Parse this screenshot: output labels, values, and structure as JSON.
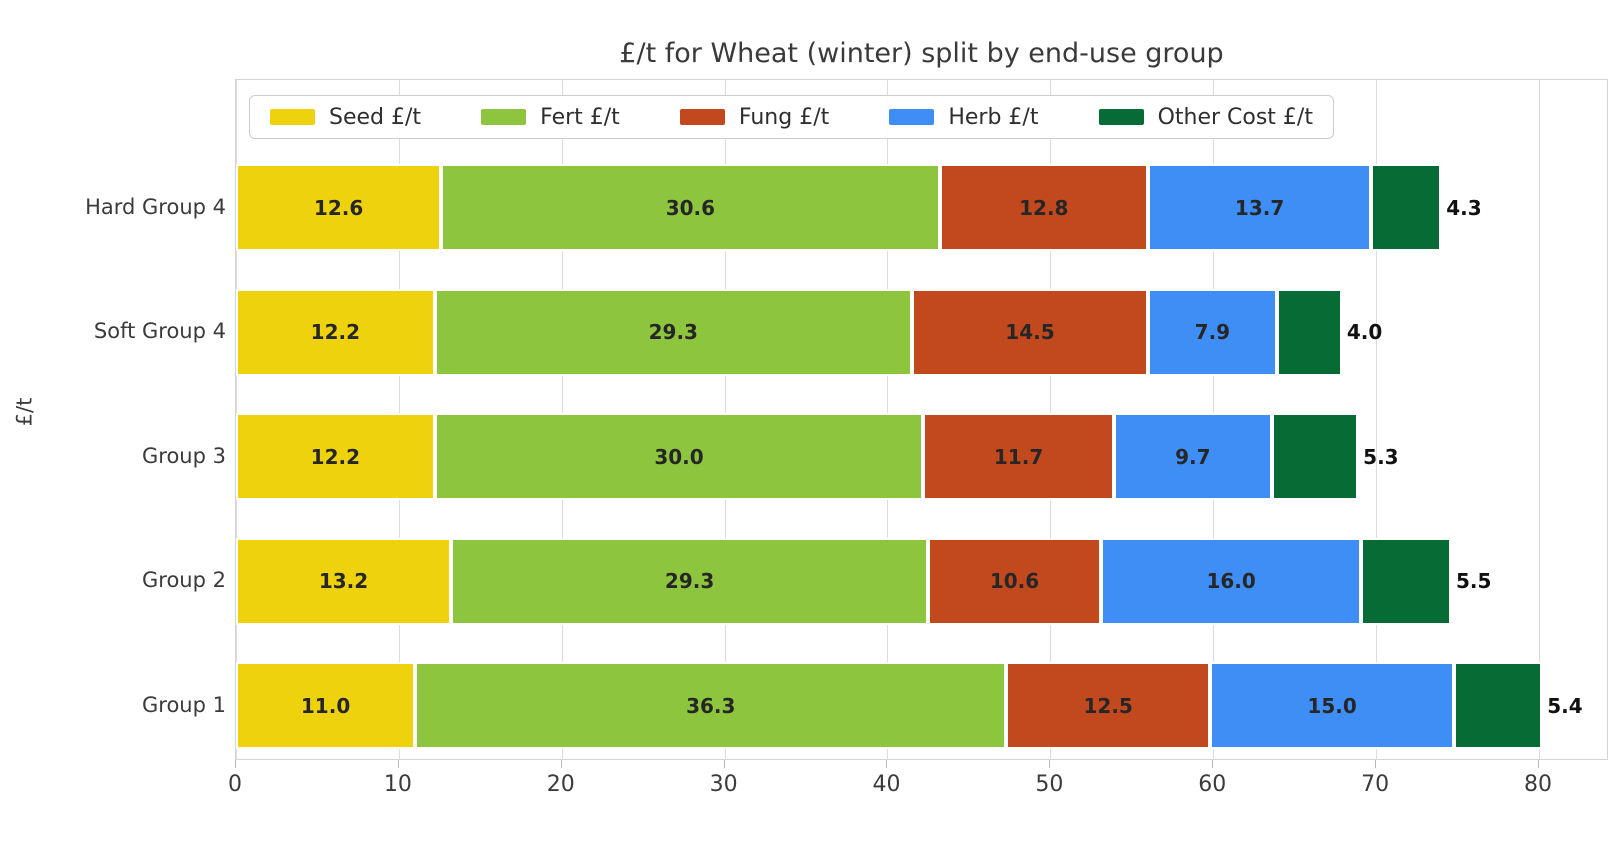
{
  "chart_data": {
    "type": "bar",
    "orientation": "horizontal-stacked",
    "title": "£/t for Wheat (winter) split by end-use group",
    "xlabel": "",
    "ylabel": "£/t",
    "categories": [
      "Hard Group 4",
      "Soft Group 4",
      "Group 3",
      "Group 2",
      "Group 1"
    ],
    "series": [
      {
        "name": "Seed £/t",
        "color": "#efd20e",
        "values": [
          12.6,
          12.2,
          12.2,
          13.2,
          11.0
        ]
      },
      {
        "name": "Fert £/t",
        "color": "#8dc63e",
        "values": [
          30.6,
          29.3,
          30.0,
          29.3,
          36.3
        ]
      },
      {
        "name": "Fung £/t",
        "color": "#c2491d",
        "values": [
          12.8,
          14.5,
          11.7,
          10.6,
          12.5
        ]
      },
      {
        "name": "Herb £/t",
        "color": "#3e8ef6",
        "values": [
          13.7,
          7.9,
          9.7,
          16.0,
          15.0
        ]
      },
      {
        "name": "Other Cost £/t",
        "color": "#076b35",
        "values": [
          4.3,
          4.0,
          5.3,
          5.5,
          5.4
        ]
      }
    ],
    "totals": [
      74.0,
      67.9,
      68.9,
      74.6,
      80.2
    ],
    "xticks": [
      0,
      10,
      20,
      30,
      40,
      50,
      60,
      70,
      80
    ],
    "xlim": [
      0,
      84.3
    ],
    "grid": "vertical",
    "legend_position": "top-inside",
    "last_series_label_placement": "outside-right"
  }
}
